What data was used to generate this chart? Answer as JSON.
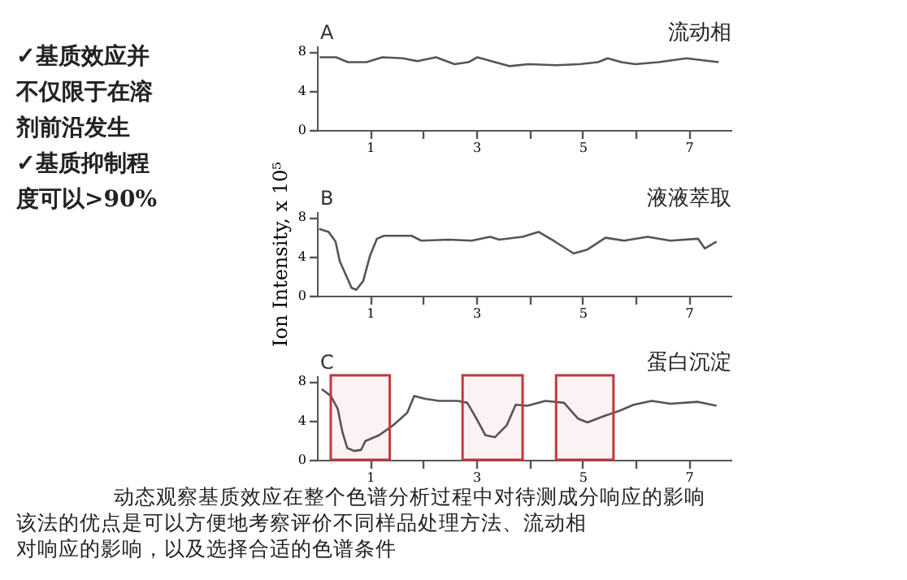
{
  "chart_data": [
    {
      "type": "line",
      "title": "流动相",
      "annotations": [
        "A",
        "✓基质效应并不仅限于在溶剂前沿发生",
        "✓基质抑制程度可以>90%"
      ],
      "x": [
        0.05,
        0.36,
        0.58,
        0.93,
        1.23,
        1.62,
        1.89,
        2.24,
        2.59,
        2.85,
        3.02,
        3.28,
        3.63,
        3.98,
        4.51,
        4.94,
        5.29,
        5.47,
        5.73,
        5.99,
        6.43,
        6.95,
        7.56
      ],
      "series": [
        {
          "color": "#555555",
          "values": [
            7.4,
            7.4,
            6.9,
            6.9,
            7.4,
            7.3,
            7.0,
            7.4,
            6.7,
            6.9,
            7.4,
            7.0,
            6.5,
            6.7,
            6.6,
            6.7,
            6.9,
            7.3,
            6.9,
            6.7,
            6.9,
            7.3,
            6.9
          ]
        }
      ],
      "xlim": [
        0,
        7.8
      ],
      "ylim": [
        0,
        8.6
      ],
      "xticks": [
        1,
        {
          "value": 2,
          "label": null
        },
        3,
        {
          "value": 4,
          "label": null
        },
        5,
        {
          "value": 6,
          "label": null
        },
        7
      ],
      "yticks": [
        0,
        4,
        8
      ],
      "grid": false,
      "marker": "none",
      "line_style": "solid"
    },
    {
      "type": "line",
      "title": "液液萃取",
      "ylabel": "Ion Intensity, x 10⁵",
      "annotations": [
        "B"
      ],
      "x": [
        0.04,
        0.22,
        0.35,
        0.43,
        0.57,
        0.65,
        0.74,
        0.87,
        1.0,
        1.13,
        1.26,
        1.78,
        1.96,
        2.48,
        2.91,
        3.26,
        3.43,
        3.87,
        4.17,
        4.48,
        4.83,
        5.09,
        5.43,
        5.78,
        6.22,
        6.65,
        7.17,
        7.3,
        7.52
      ],
      "series": [
        {
          "color": "#555555",
          "values": [
            6.8,
            6.5,
            5.5,
            3.5,
            1.8,
            0.8,
            0.6,
            1.5,
            4.1,
            5.8,
            6.1,
            6.1,
            5.6,
            5.7,
            5.6,
            6.0,
            5.7,
            6.0,
            6.5,
            5.5,
            4.3,
            4.7,
            5.9,
            5.6,
            6.0,
            5.6,
            5.8,
            4.8,
            5.5
          ]
        }
      ],
      "xlim": [
        0,
        7.8
      ],
      "ylim": [
        0,
        8.6
      ],
      "xticks": [
        1,
        {
          "value": 2,
          "label": null
        },
        3,
        {
          "value": 4,
          "label": null
        },
        5,
        {
          "value": 6,
          "label": null
        },
        7
      ],
      "yticks": [
        0,
        4,
        8
      ],
      "grid": false,
      "marker": "none",
      "line_style": "solid"
    },
    {
      "type": "line",
      "title": "蛋白沉淀",
      "annotations": [
        "C",
        "动态观察基质效应在整个色谱分析过程中对待测成分响应的影响",
        "该法的优点是可以方便地考察评价不同样品处理方法、流动相",
        "对响应的影响，以及选择合适的色谱条件"
      ],
      "x": [
        0.09,
        0.26,
        0.39,
        0.48,
        0.57,
        0.7,
        0.83,
        0.91,
        1.17,
        1.43,
        1.7,
        1.83,
        2.04,
        2.3,
        2.65,
        2.83,
        3.0,
        3.17,
        3.35,
        3.57,
        3.74,
        3.96,
        4.3,
        4.65,
        4.91,
        5.09,
        5.43,
        5.7,
        5.96,
        6.3,
        6.65,
        7.17,
        7.52
      ],
      "series": [
        {
          "color": "#555555",
          "values": [
            7.2,
            6.5,
            5.2,
            2.8,
            1.2,
            0.9,
            1.0,
            1.9,
            2.5,
            3.5,
            4.8,
            6.5,
            6.2,
            6.0,
            6.0,
            5.8,
            4.2,
            2.5,
            2.3,
            3.5,
            5.6,
            5.5,
            6.0,
            5.8,
            4.2,
            3.8,
            4.5,
            5.0,
            5.6,
            6.0,
            5.7,
            5.9,
            5.5
          ]
        }
      ],
      "yticks": [
        0,
        4,
        8
      ],
      "bands": [
        {
          "axis": "x",
          "from": 0.26,
          "to": 1.37,
          "color": "#c0393b"
        },
        {
          "axis": "x",
          "from": 2.74,
          "to": 3.87,
          "color": "#c0393b"
        },
        {
          "axis": "x",
          "from": 4.5,
          "to": 5.58,
          "color": "#c0393b"
        }
      ],
      "xlim": [
        0,
        7.8
      ],
      "ylim": [
        0,
        8.6
      ],
      "xticks": [
        1,
        {
          "value": 2,
          "label": null
        },
        3,
        {
          "value": 4,
          "label": null
        },
        5,
        {
          "value": 6,
          "label": null
        },
        7
      ],
      "grid": false,
      "marker": "none",
      "line_style": "solid"
    }
  ]
}
